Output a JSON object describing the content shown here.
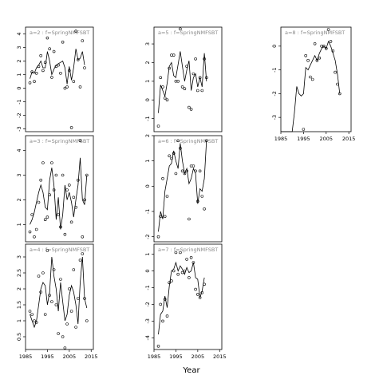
{
  "figure": {
    "xlabel": "Year"
  },
  "chart_data": [
    {
      "type": "scatter",
      "title": "a=2 : f=SpringNMFSBT",
      "xlim": [
        1985,
        2016
      ],
      "ylim": [
        -3.2,
        4.5
      ],
      "x_ticks": [
        1985,
        1995,
        2005,
        2015
      ],
      "y_ticks": [
        -3,
        -2,
        -1,
        0,
        1,
        2,
        3,
        4
      ],
      "series": [
        {
          "kind": "points",
          "x": [
            1987,
            1988,
            1989,
            1990,
            1991,
            1992,
            1993,
            1994,
            1995,
            1996,
            1997,
            1998,
            1999,
            2000,
            2001,
            2002,
            2003,
            2004,
            2005,
            2006,
            2007,
            2008,
            2009,
            2010,
            2011,
            2012,
            2013,
            2014
          ],
          "y": [
            0.4,
            1.2,
            0.5,
            1.1,
            1.6,
            2.4,
            1.3,
            1.9,
            3.7,
            2.9,
            0.8,
            2.7,
            1.6,
            1.7,
            1.1,
            3.4,
            0.0,
            0.1,
            1.3,
            -2.9,
            0.5,
            4.2,
            2.1,
            0.1,
            3.5,
            1.5,
            null,
            null
          ]
        },
        {
          "kind": "line",
          "x": [
            1987,
            1988,
            1989,
            1990,
            1991,
            1992,
            1993,
            1994,
            1995,
            1996,
            1997,
            1998,
            1999,
            2000,
            2001,
            2002,
            2003,
            2004,
            2005,
            2006,
            2007,
            2008,
            2009,
            2010,
            2011,
            2012,
            2013
          ],
          "y": [
            0.7,
            1.2,
            1.1,
            1.5,
            1.7,
            2.0,
            1.5,
            1.5,
            2.7,
            2.0,
            1.0,
            1.4,
            1.7,
            1.8,
            1.9,
            2.0,
            1.5,
            0.3,
            1.6,
            0.6,
            1.5,
            2.9,
            2.1,
            2.2,
            2.7,
            1.7,
            null
          ]
        }
      ]
    },
    {
      "type": "scatter",
      "title": "a=3 : f=SpringNMFSBT",
      "xlim": [
        1985,
        2016
      ],
      "ylim": [
        0.3,
        4.6
      ],
      "x_ticks": [
        1985,
        1995,
        2005,
        2015
      ],
      "y_ticks": [
        1,
        2,
        3,
        4
      ],
      "series": [
        {
          "kind": "points",
          "x": [
            1987,
            1988,
            1989,
            1990,
            1991,
            1992,
            1993,
            1994,
            1995,
            1996,
            1997,
            1998,
            1999,
            2000,
            2001,
            2002,
            2003,
            2004,
            2005,
            2006,
            2007,
            2008,
            2009,
            2010,
            2011,
            2012,
            2013
          ],
          "y": [
            0.7,
            1.4,
            0.5,
            0.8,
            1.9,
            2.8,
            3.5,
            1.2,
            1.3,
            2.2,
            3.5,
            2.4,
            3.0,
            1.4,
            0.9,
            3.0,
            0.6,
            2.4,
            2.6,
            1.1,
            2.1,
            1.7,
            2.8,
            4.4,
            0.5,
            2.0,
            3.0
          ]
        },
        {
          "kind": "line",
          "x": [
            1987,
            1988,
            1989,
            1990,
            1991,
            1992,
            1993,
            1994,
            1995,
            1996,
            1997,
            1998,
            1999,
            2000,
            2001,
            2002,
            2003,
            2004,
            2005,
            2006,
            2007,
            2008,
            2009,
            2010,
            2011,
            2012,
            2013
          ],
          "y": [
            1.0,
            1.2,
            1.5,
            1.9,
            2.3,
            2.6,
            2.3,
            1.7,
            1.6,
            2.8,
            3.3,
            2.6,
            1.2,
            2.1,
            0.8,
            1.4,
            2.6,
            2.0,
            2.3,
            1.9,
            1.3,
            2.0,
            2.6,
            3.7,
            2.0,
            1.8,
            3.0
          ]
        }
      ]
    },
    {
      "type": "scatter",
      "title": "a=4 : f=SpringNMFSBT",
      "xlim": [
        1985,
        2016
      ],
      "ylim": [
        0.1,
        3.4
      ],
      "x_ticks": [
        1985,
        1995,
        2005,
        2015
      ],
      "y_ticks": [
        0.5,
        1.0,
        1.5,
        2.0,
        2.5,
        3.0
      ],
      "series": [
        {
          "kind": "points",
          "x": [
            1987,
            1988,
            1989,
            1990,
            1991,
            1992,
            1993,
            1994,
            1995,
            1996,
            1997,
            1998,
            1999,
            2000,
            2001,
            2002,
            2003,
            2004,
            2005,
            2006,
            2007,
            2008,
            2009,
            2010,
            2011,
            2012,
            2013
          ],
          "y": [
            1.3,
            1.2,
            1.0,
            0.95,
            2.4,
            1.9,
            2.5,
            1.2,
            3.2,
            1.8,
            1.6,
            2.6,
            1.5,
            0.6,
            2.3,
            0.5,
            0.15,
            0.9,
            2.0,
            1.3,
            2.6,
            0.8,
            1.7,
            2.9,
            3.1,
            1.7,
            1.0
          ]
        },
        {
          "kind": "line",
          "x": [
            1987,
            1988,
            1989,
            1990,
            1991,
            1992,
            1993,
            1994,
            1995,
            1996,
            1997,
            1998,
            1999,
            2000,
            2001,
            2002,
            2003,
            2004,
            2005,
            2006,
            2007,
            2008,
            2009,
            2010,
            2011,
            2012,
            2013
          ],
          "y": [
            1.2,
            1.0,
            0.8,
            1.0,
            1.5,
            2.0,
            2.2,
            2.1,
            1.5,
            1.9,
            3.0,
            2.4,
            2.0,
            1.3,
            2.2,
            1.6,
            1.0,
            1.2,
            1.8,
            2.1,
            1.9,
            1.5,
            0.9,
            2.2,
            3.0,
            1.7,
            1.4
          ]
        }
      ]
    },
    {
      "type": "scatter",
      "title": "a=5 : f=SpringNMFSBT",
      "xlim": [
        1985,
        2016
      ],
      "ylim": [
        -1.7,
        3.9
      ],
      "x_ticks": [
        1985,
        1995,
        2005,
        2015
      ],
      "y_ticks": [
        -1,
        0,
        1,
        2,
        3
      ],
      "series": [
        {
          "kind": "points",
          "x": [
            1987,
            1988,
            1989,
            1990,
            1991,
            1992,
            1993,
            1994,
            1995,
            1996,
            1997,
            1998,
            1999,
            2000,
            2001,
            2002,
            2003,
            2004,
            2005,
            2006,
            2007,
            2008,
            2009
          ],
          "y": [
            -1.4,
            1.2,
            0.7,
            0.1,
            0.0,
            1.7,
            2.4,
            2.4,
            1.0,
            1.0,
            3.8,
            0.7,
            0.6,
            1.8,
            -0.4,
            -0.5,
            1.4,
            2.2,
            0.5,
            1.2,
            0.5,
            2.2,
            1.2
          ]
        },
        {
          "kind": "line",
          "x": [
            1987,
            1988,
            1989,
            1990,
            1991,
            1992,
            1993,
            1994,
            1995,
            1996,
            1997,
            1998,
            1999,
            2000,
            2001,
            2002,
            2003,
            2004,
            2005,
            2006,
            2007,
            2008,
            2009
          ],
          "y": [
            -0.7,
            0.8,
            0.5,
            0.2,
            0.9,
            1.8,
            2.0,
            1.3,
            1.2,
            1.9,
            2.6,
            1.8,
            1.0,
            1.6,
            2.1,
            0.5,
            1.2,
            1.4,
            0.7,
            1.2,
            0.7,
            2.5,
            1.0
          ]
        }
      ]
    },
    {
      "type": "scatter",
      "title": "a=6 : f=SpringNMFSBT",
      "xlim": [
        1985,
        2016
      ],
      "ylim": [
        -2.2,
        2.0
      ],
      "x_ticks": [
        1985,
        1995,
        2005,
        2015
      ],
      "y_ticks": [
        -2,
        -1,
        0,
        1,
        2
      ],
      "series": [
        {
          "kind": "points",
          "x": [
            1987,
            1988,
            1989,
            1990,
            1991,
            1992,
            1993,
            1994,
            1995,
            1996,
            1997,
            1998,
            1999,
            2000,
            2001,
            2002,
            2003,
            2004,
            2005,
            2006,
            2007,
            2008,
            2009
          ],
          "y": [
            -2.0,
            -1.2,
            0.3,
            -1.2,
            -0.4,
            1.2,
            1.1,
            1.3,
            0.5,
            1.8,
            1.5,
            0.6,
            0.5,
            0.6,
            -1.3,
            0.8,
            0.8,
            0.6,
            -0.6,
            0.6,
            -0.4,
            -0.9,
            1.8
          ]
        },
        {
          "kind": "line",
          "x": [
            1987,
            1988,
            1989,
            1990,
            1991,
            1992,
            1993,
            1994,
            1995,
            1996,
            1997,
            1998,
            1999,
            2000,
            2001,
            2002,
            2003,
            2004,
            2005,
            2006,
            2007,
            2008,
            2009
          ],
          "y": [
            -1.8,
            -1.0,
            -1.3,
            -0.2,
            0.3,
            0.8,
            0.9,
            1.4,
            1.0,
            0.7,
            1.7,
            1.0,
            0.5,
            0.7,
            0.1,
            0.3,
            0.7,
            0.5,
            -0.7,
            -0.1,
            -0.2,
            0.3,
            1.8
          ]
        }
      ]
    },
    {
      "type": "scatter",
      "title": "a=7 : f=SpringNMFSBT",
      "xlim": [
        1985,
        2016
      ],
      "ylim": [
        -4.7,
        1.6
      ],
      "x_ticks": [
        1985,
        1995,
        2005,
        2015
      ],
      "y_ticks": [
        -4,
        -3,
        -2,
        -1,
        0,
        1
      ],
      "series": [
        {
          "kind": "points",
          "x": [
            1987,
            1988,
            1989,
            1990,
            1991,
            1992,
            1993,
            1994,
            1995,
            1996,
            1997,
            1998,
            1999,
            2000,
            2001,
            2002,
            2003,
            2004,
            2005,
            2006,
            2007,
            2008,
            2009
          ],
          "y": [
            -4.5,
            -2.0,
            -3.0,
            -1.7,
            -2.7,
            -0.7,
            -0.6,
            0.0,
            1.1,
            -0.2,
            1.1,
            -0.1,
            0.0,
            0.7,
            -0.4,
            0.8,
            0.5,
            -1.1,
            -1.4,
            -1.6,
            -1.3,
            -0.8,
            null
          ]
        },
        {
          "kind": "line",
          "x": [
            1987,
            1988,
            1989,
            1990,
            1991,
            1992,
            1993,
            1994,
            1995,
            1996,
            1997,
            1998,
            1999,
            2000,
            2001,
            2002,
            2003,
            2004,
            2005,
            2006,
            2007,
            2008,
            2009
          ],
          "y": [
            -3.8,
            -2.6,
            -2.4,
            -1.5,
            -2.2,
            -0.9,
            0.0,
            0.1,
            0.5,
            0.0,
            0.3,
            0.1,
            -0.2,
            0.2,
            -0.1,
            0.0,
            0.5,
            -0.4,
            -0.5,
            -1.6,
            -1.2,
            -0.4,
            null
          ]
        }
      ]
    },
    {
      "type": "scatter",
      "title": "a=8 : f=SpringNMFSBT",
      "xlim": [
        1985,
        2016
      ],
      "ylim": [
        -3.6,
        0.8
      ],
      "x_ticks": [
        1985,
        1995,
        2005,
        2015
      ],
      "y_ticks": [
        -3,
        -2,
        -1,
        0
      ],
      "series": [
        {
          "kind": "points",
          "x": [
            1995,
            1996,
            1997,
            1998,
            1999,
            2000,
            2001,
            2002,
            2003,
            2004,
            2005,
            2006,
            2007,
            2008,
            2009,
            2010,
            2011
          ],
          "y": [
            -3.5,
            -0.4,
            -0.6,
            -1.3,
            -1.4,
            0.1,
            -0.6,
            -0.5,
            0.0,
            0.0,
            -0.1,
            0.7,
            0.2,
            -0.2,
            -1.1,
            -1.6,
            -2.0
          ]
        },
        {
          "kind": "line",
          "x": [
            1985,
            1990,
            1991,
            1992,
            1993,
            1994,
            1995,
            1996,
            1997,
            1998,
            1999,
            2000,
            2001,
            2002,
            2003,
            2004,
            2005,
            2006,
            2007,
            2008,
            2009,
            2010,
            2011
          ],
          "y": [
            -3.6,
            -3.6,
            -2.8,
            -1.7,
            -2.0,
            -2.1,
            -2.0,
            -0.9,
            -1.0,
            -0.8,
            -0.6,
            -0.4,
            -0.6,
            -0.3,
            -0.1,
            0.0,
            -0.1,
            0.2,
            0.0,
            -0.3,
            -0.6,
            -1.2,
            -2.0
          ]
        }
      ]
    }
  ]
}
